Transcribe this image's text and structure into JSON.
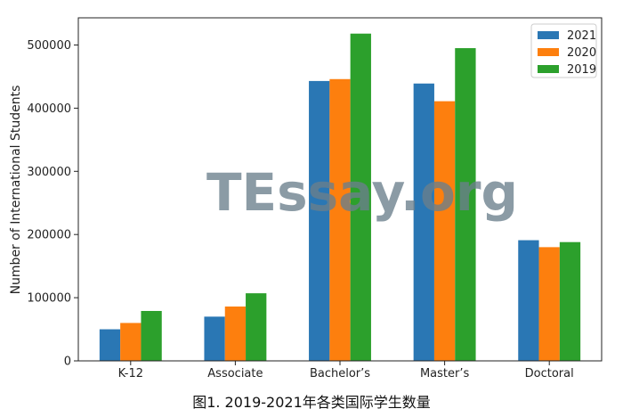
{
  "chart_data": {
    "type": "bar",
    "categories": [
      "K-12",
      "Associate",
      "Bachelor’s",
      "Master’s",
      "Doctoral"
    ],
    "series": [
      {
        "name": "2021",
        "color": "#2a77b4",
        "values": [
          50000,
          70000,
          443000,
          439000,
          191000
        ]
      },
      {
        "name": "2020",
        "color": "#fd7f0e",
        "values": [
          60000,
          86000,
          446000,
          411000,
          180000
        ]
      },
      {
        "name": "2019",
        "color": "#2ca02c",
        "values": [
          79000,
          107000,
          518000,
          495000,
          188000
        ]
      }
    ],
    "ylabel": "Number of International Students",
    "xlabel": "",
    "ylim": [
      0,
      543000
    ],
    "yticks": [
      0,
      100000,
      200000,
      300000,
      400000,
      500000
    ],
    "legend_position": "top-right",
    "grid": false
  },
  "watermark": "TEssay.org",
  "caption": "图1. 2019-2021年各类国际学生数量"
}
